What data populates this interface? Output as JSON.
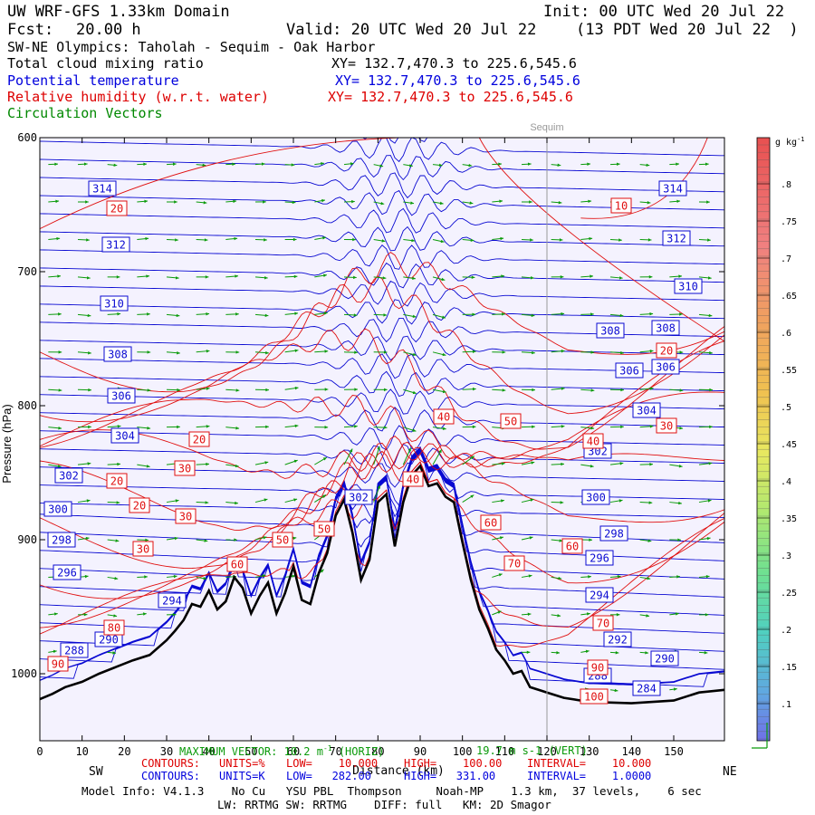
{
  "header": {
    "title_left": "UW WRF-GFS 1.33km Domain",
    "init": "Init: 00 UTC Wed 20 Jul 22",
    "fcst_label": "Fcst:",
    "fcst_value": "20.00 h",
    "valid": "Valid: 20 UTC Wed 20 Jul 22",
    "valid_local": "(13 PDT Wed 20 Jul 22  )",
    "cross_section": "SW-NE Olympics: Taholah - Sequim - Oak Harbor"
  },
  "fields": [
    {
      "label": "Total cloud mixing ratio",
      "xy": "XY= 132.7,470.3 to 225.6,545.6",
      "color": "#000000"
    },
    {
      "label": "Potential temperature",
      "xy": "XY= 132.7,470.3 to 225.6,545.6",
      "color": "#0000dd"
    },
    {
      "label": "Relative humidity (w.r.t. water)",
      "xy": "XY= 132.7,470.3 to 225.6,545.6",
      "color": "#dd0000"
    },
    {
      "label": "Circulation Vectors",
      "xy": "",
      "color": "#008800"
    }
  ],
  "colors": {
    "theta": "#0a0ad2",
    "rh": "#e01010",
    "vectors": "#0a9a0a",
    "terrain": "#000000",
    "background": "#f4f2fe"
  },
  "chart_data": {
    "type": "cross-section",
    "xlabel": "Distance (km)",
    "ylabel": "Pressure (hPa)",
    "x_ticks": [
      0,
      10,
      20,
      30,
      40,
      50,
      60,
      70,
      80,
      90,
      100,
      110,
      120,
      130,
      140,
      150
    ],
    "y_ticks": [
      600,
      700,
      800,
      900,
      1000
    ],
    "xlim": [
      0,
      162
    ],
    "ylim": [
      1050,
      600
    ],
    "direction_left": "SW",
    "direction_right": "NE",
    "location_marker": {
      "label": "Sequim",
      "x": 120
    },
    "terrain": {
      "x": [
        0,
        3,
        6,
        10,
        14,
        18,
        22,
        26,
        30,
        32,
        34,
        36,
        38,
        40,
        42,
        44,
        46,
        48,
        50,
        52,
        54,
        56,
        58,
        60,
        62,
        64,
        66,
        68,
        70,
        72,
        74,
        76,
        78,
        80,
        82,
        84,
        86,
        88,
        90,
        92,
        94,
        96,
        98,
        100,
        102,
        104,
        106,
        108,
        110,
        112,
        114,
        116,
        118,
        120,
        124,
        130,
        140,
        150,
        156,
        162
      ],
      "p": [
        1019,
        1015,
        1010,
        1006,
        1000,
        995,
        990,
        986,
        975,
        968,
        960,
        948,
        950,
        938,
        952,
        946,
        928,
        936,
        955,
        942,
        932,
        955,
        940,
        920,
        945,
        948,
        925,
        910,
        882,
        870,
        895,
        930,
        915,
        872,
        866,
        905,
        872,
        852,
        845,
        860,
        858,
        868,
        872,
        902,
        930,
        952,
        966,
        982,
        990,
        1000,
        998,
        1010,
        1012,
        1014,
        1018,
        1021,
        1022,
        1020,
        1014,
        1012
      ]
    },
    "theta_labels": [
      314,
      312,
      310,
      308,
      306,
      304,
      302,
      300,
      298,
      296,
      294,
      292,
      290,
      288,
      284
    ],
    "rh_labels": [
      10,
      20,
      30,
      40,
      50,
      60,
      70,
      80,
      90,
      100
    ],
    "theta_contours": {
      "units": "K",
      "low": "282.00",
      "high": "331.00",
      "interval": "1.0000"
    },
    "rh_contours": {
      "units": "%",
      "low": "10.000",
      "high": "100.00",
      "interval": "10.000"
    },
    "cloud_colorbar": {
      "unit": "g kg",
      "unit_sup": "-1",
      "ticks": [
        ".1",
        ".15",
        ".2",
        ".25",
        ".3",
        ".35",
        ".4",
        ".45",
        ".5",
        ".55",
        ".6",
        ".65",
        ".7",
        ".75",
        ".8"
      ]
    },
    "max_vector": {
      "label": "MAXIMUM VECTOR: 10.2 m",
      "unit_sup": "-1",
      "horiz": "(HORIZ)",
      "vert": "19.7 m s-1 (VERT)"
    }
  },
  "footer": {
    "contours_prefix": "CONTOURS:",
    "rh_units": "UNITS=%",
    "rh_low": "LOW=    10.000",
    "rh_high": "HIGH=    100.00",
    "rh_interval": "INTERVAL=    10.000",
    "th_units": "UNITS=K",
    "th_low": "LOW=   282.00",
    "th_high": "HIGH=   331.00",
    "th_interval": "INTERVAL=    1.0000",
    "model_info": "Model Info: V4.1.3    No Cu   YSU PBL  Thompson     Noah-MP    1.3 km,  37 levels,    6 sec",
    "model_info2": "LW: RRTMG SW: RRTMG    DIFF: full   KM: 2D Smagor"
  }
}
